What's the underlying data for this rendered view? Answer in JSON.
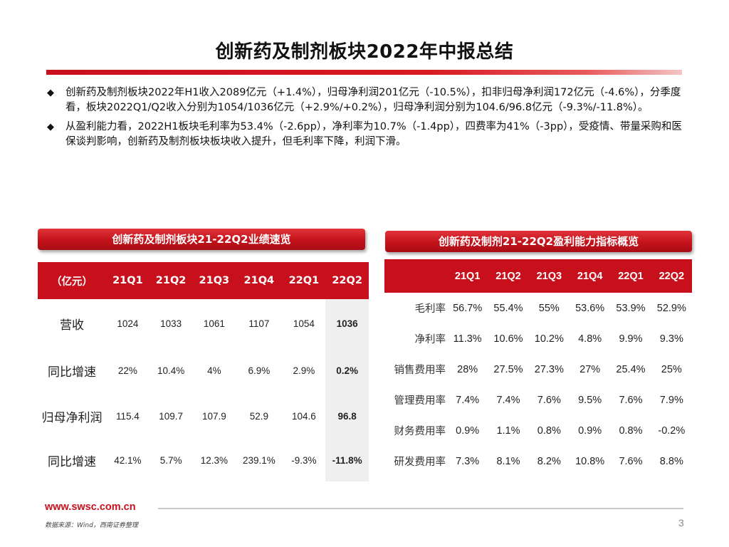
{
  "title": "创新药及制剂板块2022年中报总结",
  "bullets": [
    "创新药及制剂板块2022年H1收入2089亿元（+1.4%），归母净利润201亿元（-10.5%），扣非归母净利润172亿元（-4.6%），分季度看，板块2022Q1/Q2收入分别为1054/1036亿元（+2.9%/+0.2%），归母净利润分别为104.6/96.8亿元（-9.3%/-11.8%）。",
    "从盈利能力看，2022H1板块毛利率为53.4%（-2.6pp），净利率为10.7%（-1.4pp），四费率为41%（-3pp），受疫情、带量采购和医保谈判影响，创新药及制剂板块板块收入提升，但毛利率下降，利润下滑。"
  ],
  "left_table": {
    "heading": "创新药及制剂板块21-22Q2业绩速览",
    "unit_header": "（亿元）",
    "columns": [
      "21Q1",
      "21Q2",
      "21Q3",
      "21Q4",
      "22Q1",
      "22Q2"
    ],
    "rows": [
      {
        "label": "营收",
        "values": [
          "1024",
          "1033",
          "1061",
          "1107",
          "1054",
          "1036"
        ]
      },
      {
        "label": "同比增速",
        "values": [
          "22%",
          "10.4%",
          "4%",
          "6.9%",
          "2.9%",
          "0.2%"
        ]
      },
      {
        "label": "归母净利润",
        "values": [
          "115.4",
          "109.7",
          "107.9",
          "52.9",
          "104.6",
          "96.8"
        ]
      },
      {
        "label": "同比增速",
        "values": [
          "42.1%",
          "5.7%",
          "12.3%",
          "239.1%",
          "-9.3%",
          "-11.8%"
        ]
      }
    ]
  },
  "right_table": {
    "heading": "创新药及制剂21-22Q2盈利能力指标概览",
    "columns": [
      "21Q1",
      "21Q2",
      "21Q3",
      "21Q4",
      "22Q1",
      "22Q2"
    ],
    "rows": [
      {
        "label": "毛利率",
        "values": [
          "56.7%",
          "55.4%",
          "55%",
          "53.6%",
          "53.9%",
          "52.9%"
        ]
      },
      {
        "label": "净利率",
        "values": [
          "11.3%",
          "10.6%",
          "10.2%",
          "4.8%",
          "9.9%",
          "9.3%"
        ]
      },
      {
        "label": "销售费用率",
        "values": [
          "28%",
          "27.5%",
          "27.3%",
          "27%",
          "25.4%",
          "25%"
        ]
      },
      {
        "label": "管理费用率",
        "values": [
          "7.4%",
          "7.4%",
          "7.6%",
          "9.5%",
          "7.6%",
          "7.9%"
        ]
      },
      {
        "label": "财务费用率",
        "values": [
          "0.9%",
          "1.1%",
          "0.8%",
          "0.9%",
          "0.8%",
          "-0.2%"
        ]
      },
      {
        "label": "研发费用率",
        "values": [
          "7.3%",
          "8.1%",
          "8.2%",
          "10.8%",
          "7.6%",
          "8.8%"
        ]
      }
    ]
  },
  "footer": {
    "url": "www.swsc.com.cn",
    "source": "数据来源：Wind，西南证券整理",
    "page": "3"
  },
  "colors": {
    "accent": "#c8101d",
    "highlight": "#efefef"
  }
}
